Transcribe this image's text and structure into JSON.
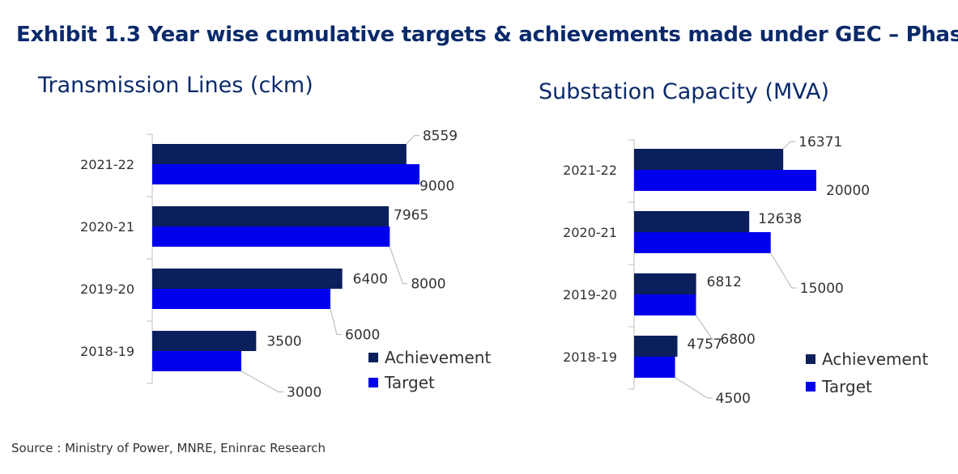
{
  "exhibit_title": "Exhibit 1.3 Year wise cumulative targets & achievements made under GEC – Phase I",
  "source": "Source : Ministry of Power, MNRE, Eninrac Research",
  "colors": {
    "achievement": "#0b1f5c",
    "target": "#0000ee",
    "axis": "#bfbfbf",
    "text": "#333333",
    "title": "#0b2a6b"
  },
  "chart_data": [
    {
      "type": "bar",
      "orientation": "horizontal",
      "title": "Transmission Lines (ckm)",
      "categories": [
        "2021-22",
        "2020-21",
        "2019-20",
        "2018-19"
      ],
      "series": [
        {
          "name": "Achievement",
          "values": [
            8559,
            7965,
            6400,
            3500
          ]
        },
        {
          "name": "Target",
          "values": [
            9000,
            8000,
            6000,
            3000
          ]
        }
      ],
      "data_labels": true,
      "legend": "bottom-right",
      "grid": false
    },
    {
      "type": "bar",
      "orientation": "horizontal",
      "title": "Substation Capacity (MVA)",
      "categories": [
        "2021-22",
        "2020-21",
        "2019-20",
        "2018-19"
      ],
      "series": [
        {
          "name": "Achievement",
          "values": [
            16371,
            12638,
            6812,
            4757
          ]
        },
        {
          "name": "Target",
          "values": [
            20000,
            15000,
            6800,
            4500
          ]
        }
      ],
      "data_labels": true,
      "legend": "bottom-right",
      "grid": false
    }
  ]
}
